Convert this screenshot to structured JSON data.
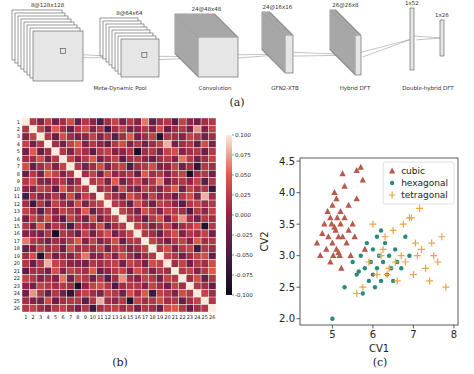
{
  "panels": [
    "(a)",
    "(b)",
    "(c)"
  ],
  "diagram": {
    "layers": [
      "8@128x128",
      "8@64x64",
      "24@48x48",
      "24@16x16",
      "26@26x8",
      "1x52",
      "1x26"
    ],
    "operations": [
      "Meta-Dynamic Pool",
      "Convolution",
      "GFN2-XTB",
      "Hybrid DFT",
      "Double-hybrid DFT"
    ]
  },
  "chart_data": [
    {
      "type": "heatmap",
      "categories": [
        1,
        2,
        3,
        4,
        5,
        6,
        7,
        8,
        9,
        10,
        11,
        12,
        13,
        14,
        15,
        16,
        17,
        18,
        19,
        20,
        21,
        22,
        23,
        24,
        25,
        26
      ],
      "cells": [
        [
          1,
          0.02,
          -0.01,
          0.03,
          -0.02,
          0.01,
          0.04,
          -0.03,
          0.02,
          0.0,
          -0.05,
          0.01,
          0.03,
          -0.02,
          0.02,
          -0.01,
          0.06,
          -0.03,
          0.01,
          0.02,
          -0.04,
          0.03,
          0.0,
          -0.02,
          0.01,
          0.02
        ],
        [
          0.02,
          1,
          0.03,
          -0.02,
          0.05,
          0.01,
          -0.03,
          0.02,
          0.04,
          -0.01,
          0.02,
          -0.06,
          0.01,
          0.03,
          -0.02,
          0.0,
          0.02,
          -0.01,
          0.04,
          -0.03,
          0.01,
          0.02,
          -0.02,
          0.07,
          -0.01,
          0.03
        ],
        [
          -0.01,
          0.03,
          1,
          0.02,
          -0.03,
          0.04,
          0.01,
          -0.02,
          0.0,
          0.03,
          -0.01,
          0.02,
          -0.04,
          0.01,
          0.05,
          -0.02,
          0.01,
          0.03,
          -0.08,
          0.02,
          0.01,
          -0.01,
          0.03,
          0.02,
          -0.02,
          0.01
        ],
        [
          0.03,
          -0.02,
          0.02,
          1,
          0.01,
          -0.02,
          0.03,
          0.05,
          -0.01,
          0.02,
          0.0,
          -0.03,
          0.02,
          0.04,
          -0.01,
          0.02,
          -0.02,
          0.01,
          0.03,
          0.08,
          -0.02,
          0.01,
          0.02,
          -0.03,
          0.04,
          -0.01
        ],
        [
          -0.02,
          0.05,
          -0.03,
          0.01,
          1,
          0.02,
          -0.01,
          0.03,
          0.01,
          -0.04,
          0.02,
          0.03,
          -0.01,
          0.0,
          0.02,
          -0.09,
          0.01,
          0.02,
          -0.02,
          0.03,
          0.04,
          -0.01,
          0.01,
          0.02,
          -0.03,
          0.02
        ],
        [
          0.01,
          0.01,
          0.04,
          -0.02,
          0.02,
          1,
          0.03,
          -0.01,
          0.02,
          0.05,
          -0.02,
          0.01,
          0.03,
          -0.04,
          0.01,
          0.02,
          0.0,
          -0.03,
          0.01,
          0.02,
          -0.01,
          0.06,
          0.02,
          -0.02,
          0.01,
          0.03
        ],
        [
          0.04,
          -0.03,
          0.01,
          0.03,
          -0.01,
          0.03,
          1,
          0.02,
          -0.02,
          0.01,
          0.04,
          -0.01,
          0.02,
          0.03,
          -0.05,
          0.01,
          0.02,
          0.04,
          -0.01,
          0.0,
          0.03,
          -0.02,
          0.01,
          -0.07,
          0.02,
          0.01
        ],
        [
          -0.03,
          0.02,
          -0.02,
          0.05,
          0.03,
          -0.01,
          0.02,
          1,
          0.01,
          0.03,
          -0.02,
          0.04,
          0.0,
          0.01,
          0.02,
          -0.03,
          0.05,
          0.01,
          0.02,
          -0.01,
          0.02,
          0.03,
          -0.09,
          0.01,
          0.02,
          -0.02
        ],
        [
          0.02,
          0.04,
          0.0,
          -0.01,
          0.01,
          0.02,
          -0.02,
          0.01,
          1,
          0.02,
          0.03,
          -0.01,
          0.05,
          -0.02,
          0.01,
          0.03,
          -0.01,
          0.02,
          0.06,
          -0.02,
          0.01,
          0.02,
          0.0,
          0.03,
          -0.04,
          0.02
        ],
        [
          0.0,
          -0.01,
          0.03,
          0.02,
          -0.04,
          0.05,
          0.01,
          0.03,
          0.02,
          1,
          0.01,
          0.02,
          -0.03,
          0.04,
          0.0,
          -0.02,
          0.03,
          0.01,
          -0.01,
          0.02,
          0.05,
          -0.02,
          0.03,
          0.01,
          0.02,
          -0.06
        ],
        [
          -0.05,
          0.02,
          -0.01,
          0.0,
          0.02,
          -0.02,
          0.04,
          -0.02,
          0.03,
          0.01,
          1,
          0.03,
          0.01,
          -0.02,
          0.04,
          0.02,
          -0.01,
          0.03,
          0.0,
          0.01,
          -0.03,
          0.02,
          0.04,
          -0.01,
          0.08,
          0.01
        ],
        [
          0.01,
          -0.06,
          0.02,
          -0.03,
          0.03,
          0.01,
          -0.01,
          0.04,
          -0.01,
          0.02,
          0.03,
          1,
          0.02,
          0.01,
          -0.03,
          0.04,
          0.01,
          -0.02,
          0.03,
          0.02,
          0.0,
          -0.04,
          0.02,
          0.03,
          0.01,
          0.02
        ],
        [
          0.03,
          0.01,
          -0.04,
          0.02,
          -0.01,
          0.03,
          0.02,
          0.0,
          0.05,
          -0.03,
          0.01,
          0.02,
          1,
          0.03,
          0.01,
          -0.02,
          0.04,
          0.02,
          -0.01,
          0.03,
          0.02,
          0.01,
          -0.05,
          0.02,
          0.0,
          0.03
        ],
        [
          -0.02,
          0.03,
          0.01,
          0.04,
          0.0,
          -0.04,
          0.03,
          0.01,
          -0.02,
          0.04,
          -0.02,
          0.01,
          0.03,
          1,
          0.02,
          0.01,
          -0.03,
          0.02,
          0.04,
          -0.02,
          0.03,
          0.07,
          0.01,
          -0.02,
          0.02,
          0.01
        ],
        [
          0.02,
          -0.02,
          0.05,
          -0.01,
          0.02,
          0.01,
          -0.05,
          0.02,
          0.01,
          0.0,
          0.04,
          -0.03,
          0.01,
          0.02,
          1,
          0.03,
          0.02,
          -0.01,
          0.01,
          0.03,
          -0.02,
          0.01,
          0.02,
          0.04,
          -0.08,
          0.02
        ],
        [
          -0.01,
          0.0,
          -0.02,
          0.02,
          -0.09,
          0.02,
          0.01,
          -0.03,
          0.03,
          -0.02,
          0.02,
          0.04,
          -0.02,
          0.01,
          0.03,
          1,
          0.02,
          0.01,
          -0.03,
          0.02,
          0.04,
          -0.01,
          0.02,
          0.01,
          0.03,
          -0.02
        ],
        [
          0.06,
          0.02,
          0.01,
          -0.02,
          0.01,
          0.0,
          0.02,
          0.05,
          -0.01,
          0.03,
          -0.01,
          0.01,
          0.04,
          -0.03,
          0.02,
          0.02,
          1,
          0.03,
          0.01,
          -0.02,
          0.02,
          0.03,
          -0.01,
          0.05,
          0.01,
          0.02
        ],
        [
          -0.03,
          -0.01,
          0.03,
          0.01,
          0.02,
          -0.03,
          0.04,
          0.01,
          0.02,
          0.01,
          0.03,
          -0.02,
          0.02,
          0.02,
          -0.01,
          0.01,
          0.03,
          1,
          0.02,
          0.04,
          -0.01,
          0.02,
          0.03,
          -0.06,
          0.02,
          0.01
        ],
        [
          0.01,
          0.04,
          -0.08,
          0.03,
          -0.02,
          0.01,
          -0.01,
          0.02,
          0.06,
          -0.01,
          0.0,
          0.03,
          -0.01,
          0.04,
          0.01,
          -0.03,
          0.01,
          0.02,
          1,
          0.03,
          0.02,
          -0.02,
          0.01,
          0.03,
          0.04,
          -0.03
        ],
        [
          0.02,
          -0.03,
          0.02,
          0.08,
          0.03,
          0.02,
          0.0,
          -0.01,
          -0.02,
          0.02,
          0.01,
          0.02,
          0.03,
          -0.02,
          0.03,
          0.02,
          -0.02,
          0.04,
          0.03,
          1,
          0.01,
          0.03,
          -0.02,
          0.02,
          0.01,
          0.04
        ],
        [
          -0.04,
          0.01,
          0.01,
          -0.02,
          0.04,
          -0.01,
          0.03,
          0.02,
          0.01,
          0.05,
          -0.03,
          0.0,
          0.02,
          0.03,
          -0.02,
          0.04,
          0.02,
          -0.01,
          0.02,
          0.01,
          1,
          0.02,
          0.03,
          -0.01,
          0.02,
          0.05
        ],
        [
          0.03,
          0.02,
          -0.01,
          0.01,
          -0.01,
          0.06,
          -0.02,
          0.03,
          0.02,
          -0.02,
          0.02,
          -0.04,
          0.01,
          0.07,
          0.01,
          -0.01,
          0.03,
          0.02,
          -0.02,
          0.03,
          0.02,
          1,
          0.01,
          0.04,
          -0.03,
          0.02
        ],
        [
          0.0,
          -0.02,
          0.03,
          0.02,
          0.01,
          0.02,
          0.01,
          -0.09,
          0.0,
          0.03,
          0.04,
          0.02,
          -0.05,
          0.01,
          0.02,
          0.02,
          -0.01,
          0.03,
          0.01,
          -0.02,
          0.03,
          0.01,
          1,
          0.02,
          0.01,
          -0.03
        ],
        [
          -0.02,
          0.07,
          0.02,
          -0.03,
          0.02,
          -0.02,
          -0.07,
          0.01,
          0.03,
          0.01,
          -0.01,
          0.03,
          0.02,
          -0.02,
          0.04,
          0.01,
          0.05,
          -0.06,
          0.03,
          0.02,
          -0.01,
          0.04,
          0.02,
          1,
          0.03,
          0.01
        ],
        [
          0.01,
          -0.01,
          -0.02,
          0.04,
          -0.03,
          0.01,
          0.02,
          0.02,
          -0.04,
          0.02,
          0.08,
          0.01,
          0.0,
          0.02,
          -0.08,
          0.03,
          0.01,
          0.02,
          0.04,
          0.01,
          0.02,
          -0.03,
          0.01,
          0.03,
          1,
          0.02
        ],
        [
          0.02,
          0.03,
          0.01,
          -0.01,
          0.02,
          0.03,
          0.01,
          -0.02,
          0.02,
          -0.06,
          0.01,
          0.02,
          0.03,
          0.01,
          0.02,
          -0.02,
          0.02,
          0.01,
          -0.03,
          0.04,
          0.05,
          0.02,
          -0.03,
          0.01,
          0.02,
          1
        ]
      ],
      "colorbar": {
        "range": [
          -0.1,
          0.1
        ],
        "ticks": [
          {
            "value": -0.1,
            "label": "-0.100"
          },
          {
            "value": -0.075,
            "label": "-0.075"
          },
          {
            "value": -0.05,
            "label": "-0.050"
          },
          {
            "value": -0.025,
            "label": "-0.025"
          },
          {
            "value": 0,
            "label": "0.000"
          },
          {
            "value": 0.025,
            "label": "0.025"
          },
          {
            "value": 0.05,
            "label": "0.050"
          },
          {
            "value": 0.075,
            "label": "0.075"
          },
          {
            "value": 0.1,
            "label": "0.100"
          }
        ]
      }
    },
    {
      "type": "scatter",
      "x_label": "CV1",
      "y_label": "CV2",
      "xlim": [
        4.2,
        8.1
      ],
      "xticks": [
        5,
        6,
        7,
        8
      ],
      "ylim": [
        1.9,
        4.55
      ],
      "yticks": [
        {
          "value": 2,
          "label": "2.0"
        },
        {
          "value": 2.5,
          "label": "2.5"
        },
        {
          "value": 3,
          "label": "3.0"
        },
        {
          "value": 3.5,
          "label": "3.5"
        },
        {
          "value": 4,
          "label": "4.0"
        },
        {
          "value": 4.5,
          "label": "4.5"
        }
      ],
      "legend": "upper right",
      "series": [
        {
          "name": "cubic",
          "color": "#b85a4e",
          "marker": "triangle",
          "x": [
            4.62,
            4.7,
            4.75,
            4.8,
            4.85,
            4.88,
            4.9,
            4.95,
            4.98,
            5.0,
            5.0,
            5.02,
            5.05,
            5.08,
            5.1,
            5.1,
            5.12,
            5.15,
            5.18,
            5.2,
            5.2,
            5.22,
            5.25,
            5.3,
            5.3,
            5.35,
            5.4,
            5.4,
            5.45,
            5.5,
            5.55,
            5.6,
            5.7,
            5.75,
            5.8,
            5.05,
            4.95,
            5.15,
            5.25,
            5.6
          ],
          "values": [
            3.2,
            3.0,
            3.35,
            3.5,
            3.1,
            3.7,
            3.3,
            2.9,
            3.5,
            3.2,
            3.8,
            3.0,
            4.0,
            3.4,
            3.1,
            3.9,
            3.6,
            3.3,
            3.0,
            3.5,
            3.7,
            2.8,
            3.3,
            3.6,
            4.1,
            3.2,
            3.4,
            3.8,
            3.0,
            3.5,
            3.3,
            3.9,
            4.4,
            4.2,
            3.1,
            3.45,
            3.6,
            3.05,
            4.3,
            4.35
          ]
        },
        {
          "name": "hexagonal",
          "color": "#2a8a7a",
          "marker": "circle",
          "x": [
            5.0,
            5.3,
            5.5,
            5.6,
            5.7,
            5.75,
            5.8,
            5.85,
            5.9,
            5.95,
            6.0,
            6.0,
            6.05,
            6.1,
            6.1,
            6.15,
            6.2,
            6.25,
            6.3,
            6.35,
            6.4,
            6.45,
            6.5,
            6.55,
            6.6,
            6.7,
            6.8,
            6.9,
            5.65,
            6.2
          ],
          "values": [
            2.0,
            2.5,
            2.9,
            2.7,
            3.0,
            2.4,
            2.8,
            3.2,
            2.6,
            2.9,
            3.1,
            2.7,
            2.5,
            3.3,
            2.8,
            3.0,
            2.6,
            2.9,
            3.2,
            2.7,
            3.0,
            2.8,
            2.6,
            3.1,
            2.9,
            2.8,
            3.3,
            3.0,
            2.75,
            3.4
          ]
        },
        {
          "name": "tetragonal",
          "color": "#eaa54a",
          "marker": "plus",
          "x": [
            5.6,
            5.9,
            6.0,
            6.1,
            6.2,
            6.3,
            6.4,
            6.5,
            6.6,
            6.7,
            6.8,
            6.9,
            7.0,
            7.05,
            7.1,
            7.2,
            7.3,
            7.4,
            7.5,
            7.6,
            7.7,
            7.8,
            6.25,
            6.55,
            6.95,
            7.15,
            6.35,
            6.75,
            7.45,
            5.75
          ],
          "values": [
            2.4,
            2.9,
            3.5,
            2.7,
            3.0,
            3.3,
            2.8,
            3.4,
            2.6,
            3.0,
            2.9,
            3.6,
            2.7,
            3.2,
            3.0,
            3.1,
            2.8,
            2.6,
            3.0,
            2.9,
            3.3,
            2.5,
            3.1,
            2.9,
            3.6,
            3.75,
            2.7,
            3.5,
            3.2,
            2.5
          ]
        }
      ]
    }
  ]
}
